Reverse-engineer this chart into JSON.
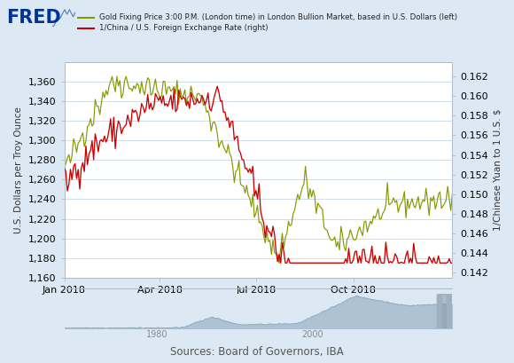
{
  "legend_line1": "Gold Fixing Price 3:00 P.M. (London time) in London Bullion Market, based in U.S. Dollars (left)",
  "legend_line2": "1/China / U.S. Foreign Exchange Rate (right)",
  "ylabel_left": "U.S. Dollars per Troy Ounce",
  "ylabel_right": "1/Chinese Yuan to 1 U.S. $",
  "source": "Sources: Board of Governors, IBA",
  "gold_color": "#859900",
  "fx_color": "#cc0000",
  "bg_color": "#dce9f5",
  "plot_bg": "#ffffff",
  "grid_color": "#c8d8e8",
  "ylim_left": [
    1160,
    1380
  ],
  "ylim_right": [
    0.1415,
    0.1635
  ],
  "yticks_left": [
    1160,
    1180,
    1200,
    1220,
    1240,
    1260,
    1280,
    1300,
    1320,
    1340,
    1360
  ],
  "yticks_right": [
    0.142,
    0.144,
    0.146,
    0.148,
    0.15,
    0.152,
    0.154,
    0.156,
    0.158,
    0.16,
    0.162
  ],
  "xtick_labels": [
    "Jan 2018",
    "Apr 2018",
    "Jul 2018",
    "Oct 2018"
  ],
  "xtick_positions": [
    0.0,
    0.246,
    0.495,
    0.745
  ],
  "fred_color": "#003399",
  "mini_bar_color": "#a8bfd0",
  "mini_line_color": "#8098b0"
}
